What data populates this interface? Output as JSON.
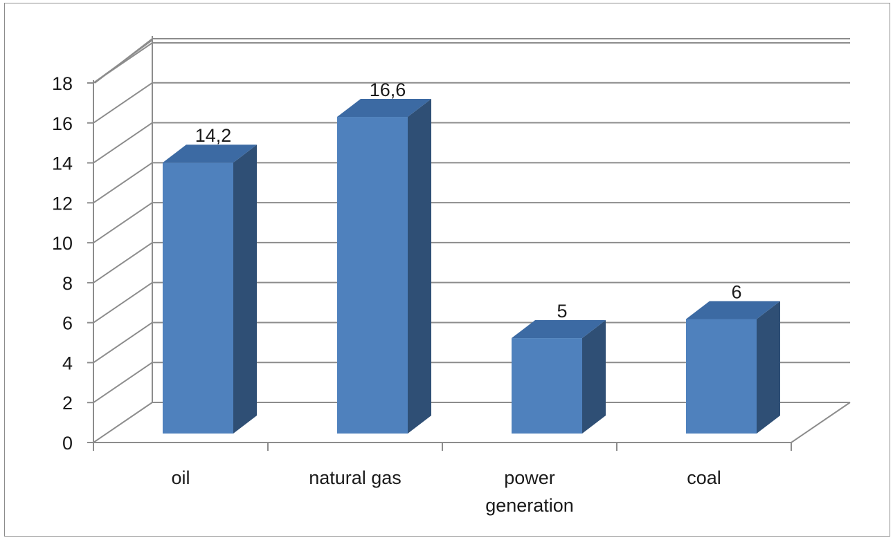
{
  "chart_data": {
    "type": "bar",
    "style": "3d-column",
    "categories": [
      "oil",
      "natural gas",
      "power generation",
      "coal"
    ],
    "category_lines": [
      [
        "oil"
      ],
      [
        "natural gas"
      ],
      [
        "power",
        "generation"
      ],
      [
        "coal"
      ]
    ],
    "values": [
      14.2,
      16.6,
      5,
      6
    ],
    "data_labels": [
      "14,2",
      "16,6",
      "5",
      "6"
    ],
    "ylim": [
      0,
      18
    ],
    "yticks": [
      0,
      2,
      4,
      6,
      8,
      10,
      12,
      14,
      16,
      18
    ],
    "ytick_labels": [
      "0",
      "2",
      "4",
      "6",
      "8",
      "10",
      "12",
      "14",
      "16",
      "18"
    ],
    "title": "",
    "xlabel": "",
    "ylabel": "",
    "grid": true,
    "legend": false,
    "colors": {
      "bar_front": "#4f81bd",
      "bar_side": "#2f4f75",
      "bar_top": "#3c6aa3",
      "gridline": "#8c8c8c",
      "axis": "#8c8c8c"
    }
  }
}
